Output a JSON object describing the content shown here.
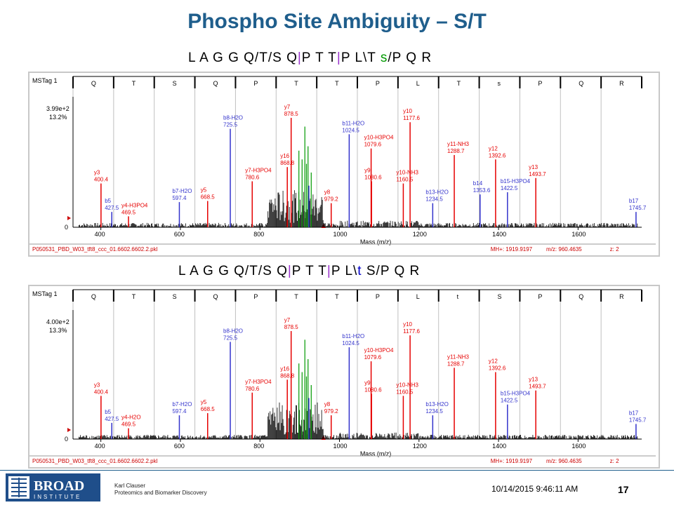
{
  "slide": {
    "title": "Phospho Site Ambiguity – S/T",
    "footer": {
      "logo_text": "BROAD",
      "logo_subtext": "INSTITUTE",
      "presenter_name": "Karl Clauser",
      "presenter_affiliation": "Proteomics and Biomarker Discovery",
      "datetime": "10/14/2015 9:46:11 AM",
      "page_number": "17"
    }
  },
  "panels": [
    {
      "sequence": [
        "L",
        " ",
        "A",
        " ",
        "G",
        " ",
        "G",
        " ",
        "Q",
        "/",
        "T",
        "/",
        "S",
        " ",
        "Q",
        "|",
        "P",
        " ",
        "T",
        " ",
        "T",
        "|",
        "P",
        " ",
        "L",
        "\\",
        "T",
        " ",
        "s",
        "/",
        "P",
        " ",
        "Q",
        " ",
        "R"
      ],
      "sequence_styles": [
        "n",
        "n",
        "n",
        "n",
        "n",
        "n",
        "n",
        "n",
        "n",
        "n",
        "n",
        "n",
        "n",
        "n",
        "n",
        "sep",
        "n",
        "n",
        "n",
        "n",
        "n",
        "sep",
        "n",
        "n",
        "n",
        "n",
        "n",
        "n",
        "lc",
        "n",
        "n",
        "n",
        "n",
        "n",
        "n"
      ],
      "spectrum": {
        "tag": "MSTag 1",
        "residues": [
          "Q",
          "T",
          "S",
          "Q",
          "P",
          "T",
          "T",
          "P",
          "L",
          "T",
          "s",
          "P",
          "Q",
          "R"
        ],
        "y_max_label": "3.99e+2",
        "y_pct_label": "13.2%",
        "zero_label": "0",
        "x_ticks": [
          "400",
          "600",
          "800",
          "1000",
          "1200",
          "1400",
          "1600"
        ],
        "xlabel": "Mass (m/z)",
        "file": "P050531_PBD_W03_tft8_ccc_01.6602.6602.2.pkl",
        "mh": "MH+: 1919.9197",
        "mz": "m/z: 960.4635",
        "z": "z: 2"
      }
    },
    {
      "sequence": [
        "L",
        " ",
        "A",
        " ",
        "G",
        " ",
        "G",
        " ",
        "Q",
        "/",
        "T",
        "/",
        "S",
        " ",
        "Q",
        "|",
        "P",
        " ",
        "T",
        " ",
        "T",
        "|",
        "P",
        " ",
        "L",
        "\\",
        "t",
        " ",
        "S",
        "/",
        "P",
        " ",
        "Q",
        " ",
        "R"
      ],
      "sequence_styles": [
        "n",
        "n",
        "n",
        "n",
        "n",
        "n",
        "n",
        "n",
        "n",
        "n",
        "n",
        "n",
        "n",
        "n",
        "n",
        "sep",
        "n",
        "n",
        "n",
        "n",
        "n",
        "sep",
        "n",
        "n",
        "n",
        "n",
        "lcb",
        "n",
        "n",
        "n",
        "n",
        "n",
        "n",
        "n",
        "n"
      ],
      "spectrum": {
        "tag": "MSTag 1",
        "residues": [
          "Q",
          "T",
          "S",
          "Q",
          "P",
          "T",
          "T",
          "P",
          "L",
          "t",
          "S",
          "P",
          "Q",
          "R"
        ],
        "y_max_label": "4.00e+2",
        "y_pct_label": "13.3%",
        "zero_label": "0",
        "x_ticks": [
          "400",
          "600",
          "800",
          "1000",
          "1200",
          "1400",
          "1600"
        ],
        "xlabel": "Mass (m/z)",
        "file": "P050531_PBD_W03_tft8_ccc_01.6602.6602.2.pkl",
        "mh": "MH+: 1919.9197",
        "mz": "m/z: 960.4635",
        "z": "z: 2"
      }
    }
  ],
  "chart_data": [
    {
      "type": "bar",
      "title": "",
      "xlabel": "Mass (m/z)",
      "ylabel": "",
      "xlim": [
        330,
        1760
      ],
      "ylim": [
        0,
        100
      ],
      "colors": {
        "y_ion": "#e60000",
        "b_ion": "#3333cc",
        "unassigned": "#000000",
        "precursor": "#009900"
      },
      "peaks": [
        {
          "x": 400.4,
          "y": 40,
          "label": "y3",
          "value": "400.4",
          "type": "y"
        },
        {
          "x": 427.5,
          "y": 14,
          "label": "b5",
          "value": "427.5",
          "type": "b"
        },
        {
          "x": 469.5,
          "y": 10,
          "label": "y4-H3PO4",
          "value": "469.5",
          "type": "y"
        },
        {
          "x": 597.4,
          "y": 23,
          "label": "b7-H2O",
          "value": "597.4",
          "type": "b"
        },
        {
          "x": 668.5,
          "y": 24,
          "label": "y5",
          "value": "668.5",
          "type": "y"
        },
        {
          "x": 725.5,
          "y": 90,
          "label": "b8-H2O",
          "value": "725.5",
          "type": "b"
        },
        {
          "x": 780.6,
          "y": 42,
          "label": "y7-H3PO4",
          "value": "780.6",
          "type": "y"
        },
        {
          "x": 868.8,
          "y": 55,
          "label": "y16",
          "value": "868.8",
          "type": "y"
        },
        {
          "x": 878.5,
          "y": 100,
          "label": "y7",
          "value": "878.5",
          "type": "y"
        },
        {
          "x": 923.0,
          "y": 38,
          "label": "",
          "value": "",
          "type": "b"
        },
        {
          "x": 979.2,
          "y": 22,
          "label": "y8",
          "value": "979.2",
          "type": "y"
        },
        {
          "x": 1024.5,
          "y": 85,
          "label": "b11-H2O",
          "value": "1024.5",
          "type": "b"
        },
        {
          "x": 1079.6,
          "y": 72,
          "label": "y10-H3PO4",
          "value": "1079.6",
          "type": "y"
        },
        {
          "x": 1080.6,
          "y": 42,
          "label": "y9",
          "value": "1080.6",
          "type": "y"
        },
        {
          "x": 1160.5,
          "y": 40,
          "label": "y10-NH3",
          "value": "1160.5",
          "type": "y"
        },
        {
          "x": 1177.6,
          "y": 96,
          "label": "y10",
          "value": "1177.6",
          "type": "y"
        },
        {
          "x": 1234.5,
          "y": 22,
          "label": "b13-H2O",
          "value": "1234.5",
          "type": "b"
        },
        {
          "x": 1288.7,
          "y": 66,
          "label": "y11-NH3",
          "value": "1288.7",
          "type": "y"
        },
        {
          "x": 1353.6,
          "y": 30,
          "label": "b14",
          "value": "1353.6",
          "type": "b"
        },
        {
          "x": 1392.6,
          "y": 62,
          "label": "y12",
          "value": "1392.6",
          "type": "y"
        },
        {
          "x": 1422.5,
          "y": 32,
          "label": "b15-H3PO4",
          "value": "1422.5",
          "type": "b"
        },
        {
          "x": 1493.7,
          "y": 45,
          "label": "y13",
          "value": "1493.7",
          "type": "y"
        },
        {
          "x": 1745.7,
          "y": 14,
          "label": "b17",
          "value": "1745.7",
          "type": "b"
        }
      ]
    },
    {
      "type": "bar",
      "title": "",
      "xlabel": "Mass (m/z)",
      "ylabel": "",
      "xlim": [
        330,
        1760
      ],
      "ylim": [
        0,
        100
      ],
      "colors": {
        "y_ion": "#e60000",
        "b_ion": "#3333cc",
        "unassigned": "#000000",
        "precursor": "#009900"
      },
      "peaks": [
        {
          "x": 400.4,
          "y": 40,
          "label": "y3",
          "value": "400.4",
          "type": "y"
        },
        {
          "x": 427.5,
          "y": 15,
          "label": "b5",
          "value": "427.5",
          "type": "b"
        },
        {
          "x": 469.5,
          "y": 10,
          "label": "y4-H2O",
          "value": "469.5",
          "type": "y"
        },
        {
          "x": 597.4,
          "y": 22,
          "label": "b7-H2O",
          "value": "597.4",
          "type": "b"
        },
        {
          "x": 668.5,
          "y": 24,
          "label": "y5",
          "value": "668.5",
          "type": "y"
        },
        {
          "x": 725.5,
          "y": 90,
          "label": "b8-H2O",
          "value": "725.5",
          "type": "b"
        },
        {
          "x": 780.6,
          "y": 43,
          "label": "y7-H3PO4",
          "value": "780.6",
          "type": "y"
        },
        {
          "x": 868.8,
          "y": 55,
          "label": "y16",
          "value": "868.8",
          "type": "y"
        },
        {
          "x": 878.5,
          "y": 100,
          "label": "y7",
          "value": "878.5",
          "type": "y"
        },
        {
          "x": 923.0,
          "y": 38,
          "label": "",
          "value": "",
          "type": "b"
        },
        {
          "x": 979.2,
          "y": 22,
          "label": "y8",
          "value": "979.2",
          "type": "y"
        },
        {
          "x": 1024.5,
          "y": 85,
          "label": "b11-H2O",
          "value": "1024.5",
          "type": "b"
        },
        {
          "x": 1079.6,
          "y": 72,
          "label": "y10-H3PO4",
          "value": "1079.6",
          "type": "y"
        },
        {
          "x": 1080.6,
          "y": 42,
          "label": "y9",
          "value": "1080.6",
          "type": "y"
        },
        {
          "x": 1160.5,
          "y": 40,
          "label": "y10-NH3",
          "value": "1160.5",
          "type": "y"
        },
        {
          "x": 1177.6,
          "y": 96,
          "label": "y10",
          "value": "1177.6",
          "type": "y"
        },
        {
          "x": 1234.5,
          "y": 22,
          "label": "b13-H2O",
          "value": "1234.5",
          "type": "b"
        },
        {
          "x": 1288.7,
          "y": 66,
          "label": "y11-NH3",
          "value": "1288.7",
          "type": "y"
        },
        {
          "x": 1392.6,
          "y": 62,
          "label": "y12",
          "value": "1392.6",
          "type": "y"
        },
        {
          "x": 1422.5,
          "y": 32,
          "label": "b15-H3PO4",
          "value": "1422.5",
          "type": "b"
        },
        {
          "x": 1493.7,
          "y": 45,
          "label": "y13",
          "value": "1493.7",
          "type": "y"
        },
        {
          "x": 1745.7,
          "y": 14,
          "label": "b17",
          "value": "1745.7",
          "type": "b"
        }
      ]
    }
  ]
}
